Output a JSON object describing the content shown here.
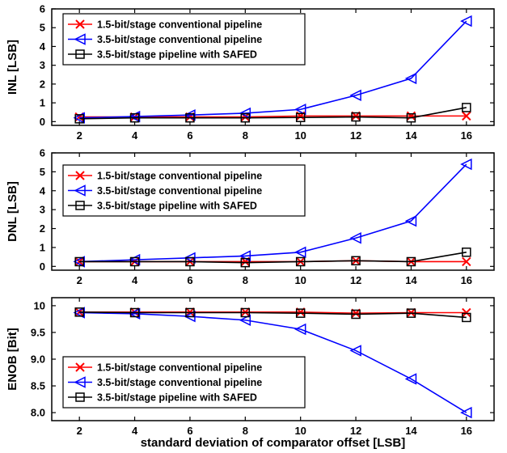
{
  "chart_data": [
    {
      "type": "line",
      "ylabel": "INL [LSB]",
      "x": [
        2,
        4,
        6,
        8,
        10,
        12,
        14,
        16
      ],
      "xlim": [
        1,
        17
      ],
      "ylim": [
        -0.2,
        6
      ],
      "yticks": [
        0,
        1,
        2,
        3,
        4,
        5,
        6
      ],
      "xticks": [
        2,
        4,
        6,
        8,
        10,
        12,
        14,
        16
      ],
      "grid": false,
      "legend_position": "top-left",
      "series": [
        {
          "name": "1.5-bit/stage conventional pipeline",
          "color": "#ff0000",
          "marker": "x",
          "values": [
            0.25,
            0.25,
            0.25,
            0.25,
            0.3,
            0.3,
            0.3,
            0.3
          ]
        },
        {
          "name": "3.5-bit/stage conventional pipeline",
          "color": "#0000ff",
          "marker": "triangle-left",
          "values": [
            0.2,
            0.27,
            0.35,
            0.45,
            0.65,
            1.4,
            2.3,
            5.35
          ]
        },
        {
          "name": "3.5-bit/stage pipeline with SAFED",
          "color": "#000000",
          "marker": "square",
          "values": [
            0.15,
            0.2,
            0.2,
            0.2,
            0.22,
            0.25,
            0.2,
            0.75
          ]
        }
      ]
    },
    {
      "type": "line",
      "ylabel": "DNL [LSB]",
      "x": [
        2,
        4,
        6,
        8,
        10,
        12,
        14,
        16
      ],
      "xlim": [
        1,
        17
      ],
      "ylim": [
        -0.2,
        6
      ],
      "yticks": [
        0,
        1,
        2,
        3,
        4,
        5,
        6
      ],
      "xticks": [
        2,
        4,
        6,
        8,
        10,
        12,
        14,
        16
      ],
      "grid": false,
      "legend_position": "top-left",
      "series": [
        {
          "name": "1.5-bit/stage conventional pipeline",
          "color": "#ff0000",
          "marker": "x",
          "values": [
            0.25,
            0.25,
            0.25,
            0.25,
            0.25,
            0.3,
            0.25,
            0.25
          ]
        },
        {
          "name": "3.5-bit/stage conventional pipeline",
          "color": "#0000ff",
          "marker": "triangle-left",
          "values": [
            0.25,
            0.35,
            0.45,
            0.55,
            0.75,
            1.5,
            2.4,
            5.4
          ]
        },
        {
          "name": "3.5-bit/stage pipeline with SAFED",
          "color": "#000000",
          "marker": "square",
          "values": [
            0.25,
            0.25,
            0.25,
            0.2,
            0.25,
            0.3,
            0.25,
            0.75
          ]
        }
      ]
    },
    {
      "type": "line",
      "ylabel": "ENOB [Bit]",
      "xlabel": "standard deviation of comparator offset [LSB]",
      "x": [
        2,
        4,
        6,
        8,
        10,
        12,
        14,
        16
      ],
      "xlim": [
        1,
        17
      ],
      "ylim": [
        7.85,
        10.15
      ],
      "yticks": [
        8.0,
        8.5,
        9.0,
        9.5,
        10.0
      ],
      "ytick_labels": [
        "8.0",
        "8.5",
        "9.0",
        "9.5",
        "10"
      ],
      "xticks": [
        2,
        4,
        6,
        8,
        10,
        12,
        14,
        16
      ],
      "grid": false,
      "legend_position": "bottom-left",
      "series": [
        {
          "name": "1.5-bit/stage conventional pipeline",
          "color": "#ff0000",
          "marker": "x",
          "values": [
            9.88,
            9.88,
            9.88,
            9.88,
            9.88,
            9.86,
            9.87,
            9.87
          ]
        },
        {
          "name": "3.5-bit/stage conventional pipeline",
          "color": "#0000ff",
          "marker": "triangle-left",
          "values": [
            9.87,
            9.85,
            9.8,
            9.73,
            9.56,
            9.16,
            8.63,
            8.0
          ]
        },
        {
          "name": "3.5-bit/stage pipeline with SAFED",
          "color": "#000000",
          "marker": "square",
          "values": [
            9.88,
            9.87,
            9.87,
            9.87,
            9.86,
            9.84,
            9.86,
            9.78
          ]
        }
      ]
    }
  ]
}
